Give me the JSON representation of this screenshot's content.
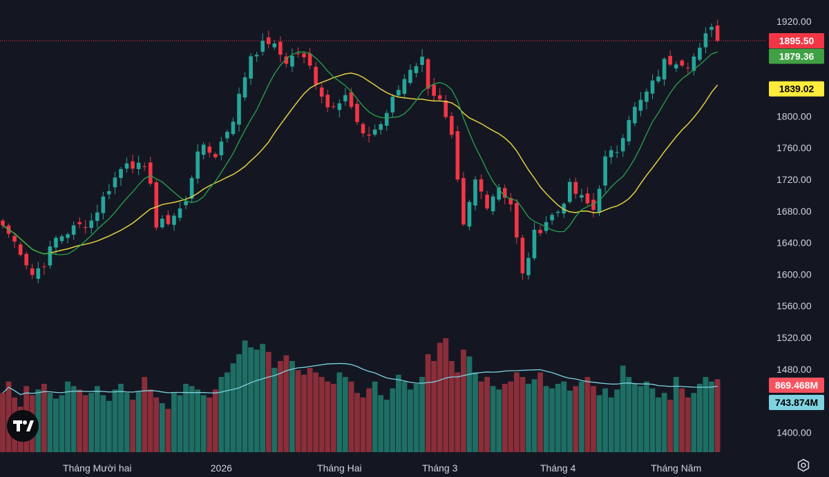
{
  "chart_data": {
    "type": "candlestick",
    "price_axis": {
      "min": 1380,
      "max": 1940,
      "ticks": [
        1400,
        1440,
        1480,
        1520,
        1560,
        1600,
        1640,
        1680,
        1720,
        1760,
        1800,
        1840,
        1880,
        1920
      ],
      "tick_labels": [
        "1400.00",
        "1440.00",
        "1480.00",
        "1520.00",
        "1560.00",
        "1600.00",
        "1640.00",
        "1680.00",
        "1720.00",
        "1760.00",
        "1800.00",
        "1840.00",
        "1880.00",
        "1920.00"
      ]
    },
    "time_axis_labels": [
      {
        "label": "Tháng Mười hai",
        "index": 16
      },
      {
        "label": "2026",
        "index": 37
      },
      {
        "label": "Tháng Hai",
        "index": 57
      },
      {
        "label": "Tháng 3",
        "index": 74
      },
      {
        "label": "Tháng 4",
        "index": 94
      },
      {
        "label": "Tháng Năm",
        "index": 114
      }
    ],
    "close_anchors": [
      [
        0,
        1662
      ],
      [
        3,
        1630
      ],
      [
        5,
        1600
      ],
      [
        7,
        1615
      ],
      [
        9,
        1645
      ],
      [
        12,
        1658
      ],
      [
        15,
        1668
      ],
      [
        18,
        1710
      ],
      [
        21,
        1745
      ],
      [
        24,
        1730
      ],
      [
        25,
        1720
      ],
      [
        26,
        1660
      ],
      [
        28,
        1668
      ],
      [
        31,
        1690
      ],
      [
        33,
        1760
      ],
      [
        36,
        1752
      ],
      [
        39,
        1798
      ],
      [
        42,
        1878
      ],
      [
        45,
        1895
      ],
      [
        48,
        1870
      ],
      [
        50,
        1880
      ],
      [
        52,
        1862
      ],
      [
        55,
        1812
      ],
      [
        58,
        1828
      ],
      [
        61,
        1772
      ],
      [
        64,
        1790
      ],
      [
        66,
        1820
      ],
      [
        69,
        1862
      ],
      [
        71,
        1872
      ],
      [
        72,
        1840
      ],
      [
        74,
        1818
      ],
      [
        76,
        1770
      ],
      [
        78,
        1658
      ],
      [
        80,
        1718
      ],
      [
        82,
        1690
      ],
      [
        84,
        1712
      ],
      [
        86,
        1690
      ],
      [
        88,
        1598
      ],
      [
        90,
        1650
      ],
      [
        92,
        1668
      ],
      [
        94,
        1680
      ],
      [
        96,
        1710
      ],
      [
        98,
        1695
      ],
      [
        100,
        1682
      ],
      [
        102,
        1745
      ],
      [
        104,
        1758
      ],
      [
        106,
        1800
      ],
      [
        108,
        1818
      ],
      [
        110,
        1840
      ],
      [
        112,
        1868
      ],
      [
        114,
        1872
      ],
      [
        116,
        1868
      ],
      [
        118,
        1882
      ],
      [
        120,
        1918
      ],
      [
        121,
        1895.5
      ]
    ],
    "volume_profile": [
      0.52,
      0.62,
      0.48,
      0.4,
      0.58,
      0.5,
      0.55,
      0.6,
      0.52,
      0.47,
      0.5,
      0.62,
      0.58,
      0.55,
      0.5,
      0.52,
      0.58,
      0.5,
      0.45,
      0.55,
      0.6,
      0.52,
      0.46,
      0.53,
      0.66,
      0.55,
      0.48,
      0.43,
      0.38,
      0.52,
      0.5,
      0.6,
      0.58,
      0.55,
      0.5,
      0.48,
      0.55,
      0.66,
      0.7,
      0.78,
      0.86,
      0.98,
      0.92,
      0.9,
      0.95,
      0.88,
      0.74,
      0.8,
      0.85,
      0.8,
      0.72,
      0.68,
      0.74,
      0.7,
      0.66,
      0.62,
      0.6,
      0.7,
      0.66,
      0.62,
      0.52,
      0.48,
      0.56,
      0.62,
      0.5,
      0.46,
      0.56,
      0.68,
      0.62,
      0.55,
      0.6,
      0.66,
      0.86,
      0.8,
      0.96,
      1.0,
      0.8,
      0.7,
      0.9,
      0.84,
      0.7,
      0.62,
      0.66,
      0.58,
      0.55,
      0.6,
      0.62,
      0.7,
      0.66,
      0.6,
      0.64,
      0.7,
      0.58,
      0.56,
      0.6,
      0.62,
      0.54,
      0.58,
      0.62,
      0.66,
      0.58,
      0.5,
      0.56,
      0.48,
      0.55,
      0.76,
      0.66,
      0.6,
      0.58,
      0.62,
      0.56,
      0.48,
      0.52,
      0.46,
      0.66,
      0.56,
      0.48,
      0.52,
      0.6,
      0.66,
      0.62,
      0.64
    ],
    "ma_fast_color": "#26a64c",
    "ma_slow_color": "#e5d142",
    "volume_ma_color": "#7fd3e0",
    "up_color": "#26a69a",
    "down_color": "#f23645",
    "up_volume_color": "#1e6e64",
    "down_volume_color": "#8a2e3a",
    "last_price": {
      "value": 1895.5,
      "label": "1895.50",
      "color": "#f23645"
    },
    "ma_fast_last": {
      "value": 1879.36,
      "label": "1879.36",
      "color": "#3fa143"
    },
    "ma_slow_last": {
      "value": 1839.02,
      "label": "1839.02",
      "color": "#ffeb3b"
    },
    "volume_last": {
      "label": "869.468M",
      "color": "#f7525f"
    },
    "volume_ma_last": {
      "label": "743.874M",
      "color": "#7fd3e0"
    }
  },
  "icons": {
    "logo": "tradingview-logo",
    "settings": "settings-icon"
  },
  "logo_text": "TV"
}
